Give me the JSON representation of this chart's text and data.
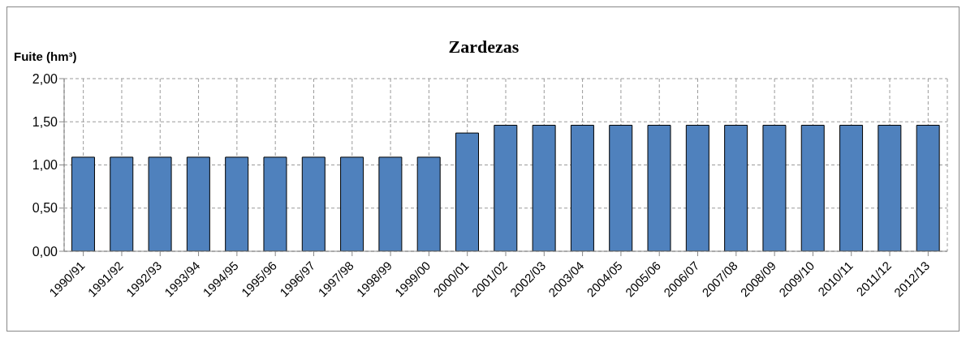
{
  "chart_data": {
    "type": "bar",
    "title": "Zardezas",
    "ylabel": "Fuite (hm³)",
    "categories": [
      "1990/91",
      "1991/92",
      "1992/93",
      "1993/94",
      "1994/95",
      "1995/96",
      "1996/97",
      "1997/98",
      "1998/99",
      "1999/00",
      "2000/01",
      "2001/02",
      "2002/03",
      "2003/04",
      "2004/05",
      "2005/06",
      "2006/07",
      "2007/08",
      "2008/09",
      "2009/10",
      "2010/11",
      "2011/12",
      "2012/13"
    ],
    "values": [
      1.09,
      1.09,
      1.09,
      1.09,
      1.09,
      1.09,
      1.09,
      1.09,
      1.09,
      1.09,
      1.37,
      1.46,
      1.46,
      1.46,
      1.46,
      1.46,
      1.46,
      1.46,
      1.46,
      1.46,
      1.46,
      1.46,
      1.46
    ],
    "color": "#4f81bd",
    "ylim": [
      0,
      2
    ],
    "yticks": [
      {
        "value": 0,
        "label": "0,00"
      },
      {
        "value": 0.5,
        "label": "0,50"
      },
      {
        "value": 1,
        "label": "1,00"
      },
      {
        "value": 1.5,
        "label": "1,50"
      },
      {
        "value": 2,
        "label": "2,00"
      }
    ],
    "grid": true
  }
}
